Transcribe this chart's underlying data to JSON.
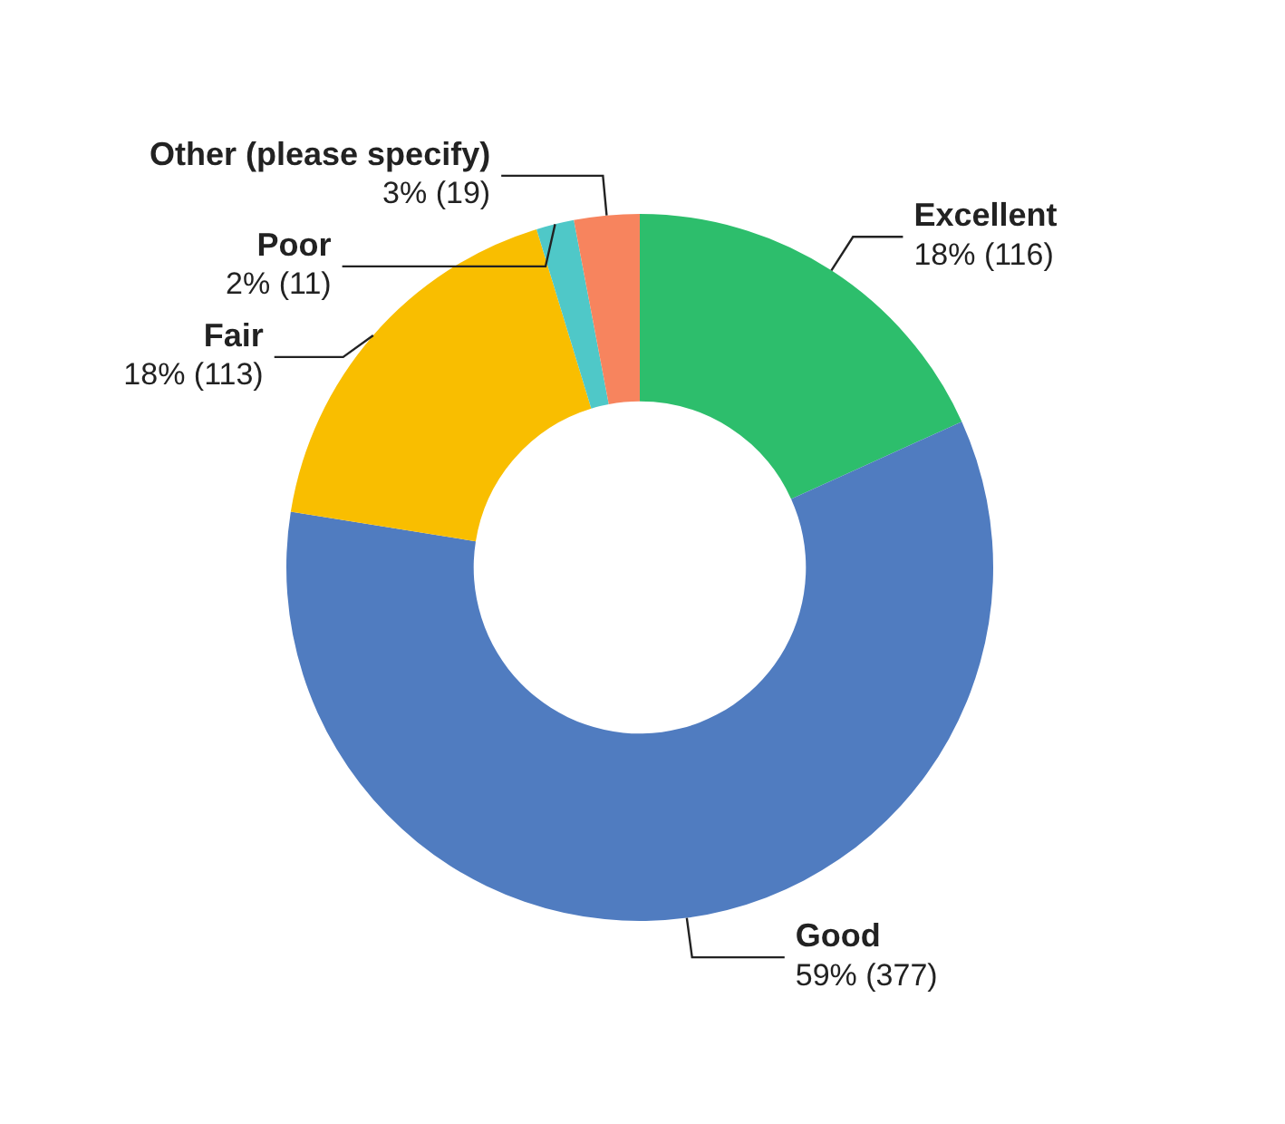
{
  "chart_data": {
    "type": "donut",
    "categories": [
      "Excellent",
      "Good",
      "Fair",
      "Poor",
      "Other (please specify)"
    ],
    "values": [
      116,
      377,
      113,
      11,
      19
    ],
    "value_labels": [
      "18% (116)",
      "59% (377)",
      "18% (113)",
      "2% (11)",
      "3% (19)"
    ],
    "colors": [
      "#2dbe6c",
      "#507cc0",
      "#f9be00",
      "#4fc8c8",
      "#f7845e"
    ],
    "legend": false
  }
}
